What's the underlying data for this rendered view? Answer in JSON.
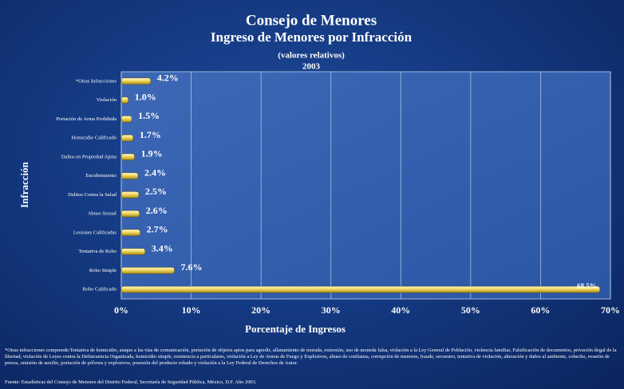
{
  "chart_data": {
    "type": "barh",
    "title": "Consejo de Menores",
    "subtitle": "Ingreso de Menores  por Infracción",
    "note": "(valores relativos)",
    "year": "2003",
    "x_label": "Porcentaje de Ingresos",
    "y_label": "Infracción",
    "categories": [
      "*Otras Infracciones",
      "Violación",
      "Portación de Arma Prohibida",
      "Homicidio Calificado",
      "Daños en Propiedad Ajena",
      "Encubrimiento",
      "Delitos Contra la Salud",
      "Abuso Sexual",
      "Lesiones Calificadas",
      "Tentativa de Robo",
      "Robo Simple",
      "Robo Calificado"
    ],
    "values": [
      4.2,
      1.0,
      1.5,
      1.7,
      1.9,
      2.4,
      2.5,
      2.6,
      2.7,
      3.4,
      7.6,
      68.5
    ],
    "value_labels": [
      "4.2%",
      "1.0%",
      "1.5%",
      "1.7%",
      "1.9%",
      "2.4%",
      "2.5%",
      "2.6%",
      "2.7%",
      "3.4%",
      "7.6%",
      "68.5%"
    ],
    "color": "#f0d860",
    "xlim": [
      0,
      70
    ],
    "xticks": [
      {
        "value": 0,
        "label": "0%"
      },
      {
        "value": 10,
        "label": "10%"
      },
      {
        "value": 20,
        "label": "20%"
      },
      {
        "value": 30,
        "label": "30%"
      },
      {
        "value": 40,
        "label": "40%"
      },
      {
        "value": 50,
        "label": "50%"
      },
      {
        "value": 60,
        "label": "60%"
      },
      {
        "value": 70,
        "label": "70%"
      }
    ],
    "grid": true,
    "footnote": "*Otras infracciones comprende:Tentativa de homicidio, ataque a las vías de comunicación, portación de objetos aptos para agredir, allanamiento de morada, extorsión, uso de moneda falsa, violación a la Ley General de Población, violencia familiar, Falsificación de documentos, privación ilegal de la libertad, violación de Leyes contra la Delincuencia Organizada, homicidio simple, resistencia a particulares, violación a Ley de Armas de Fuego y Explosivos, abuso de confianza, corrupción de menores, fraude, secuestro, tentativa de violación, alteración y daños al ambiente, cohecho, evasión de presos, omisión de auxilio, portación de pólvora y explosivos, posesión del producto robado y violación a la Ley Federal de Derechos de Autor.",
    "source": "Fuente: Estadísticas del Consejo de Menores del Distrito Federal, Secretaría de Seguridad Pública, México, D.F. Año 2003."
  }
}
